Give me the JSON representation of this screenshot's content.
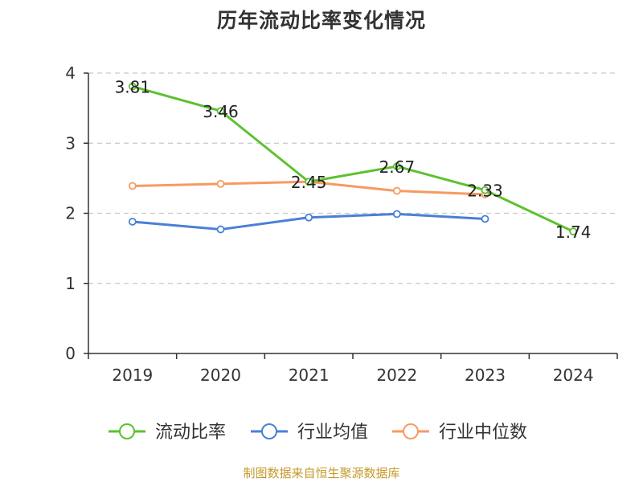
{
  "chart_data": {
    "type": "line",
    "title": "历年流动比率变化情况",
    "categories": [
      "2019",
      "2020",
      "2021",
      "2022",
      "2023",
      "2024"
    ],
    "ylim": [
      0,
      4
    ],
    "yticks": [
      "0",
      "1",
      "2",
      "3",
      "4"
    ],
    "grid": true,
    "legend_position": "bottom",
    "series": [
      {
        "name": "流动比率",
        "color": "#5cc12e",
        "values": [
          3.81,
          3.46,
          2.45,
          2.67,
          2.33,
          1.74
        ],
        "labels": [
          "3.81",
          "3.46",
          "2.45",
          "2.67",
          "2.33",
          "1.74"
        ]
      },
      {
        "name": "行业均值",
        "color": "#4a7fd6",
        "values": [
          1.88,
          1.77,
          1.94,
          1.99,
          1.92,
          null
        ]
      },
      {
        "name": "行业中位数",
        "color": "#f79a62",
        "values": [
          2.39,
          2.42,
          2.45,
          2.32,
          2.27,
          null
        ]
      }
    ],
    "source": "制图数据来自恒生聚源数据库"
  }
}
